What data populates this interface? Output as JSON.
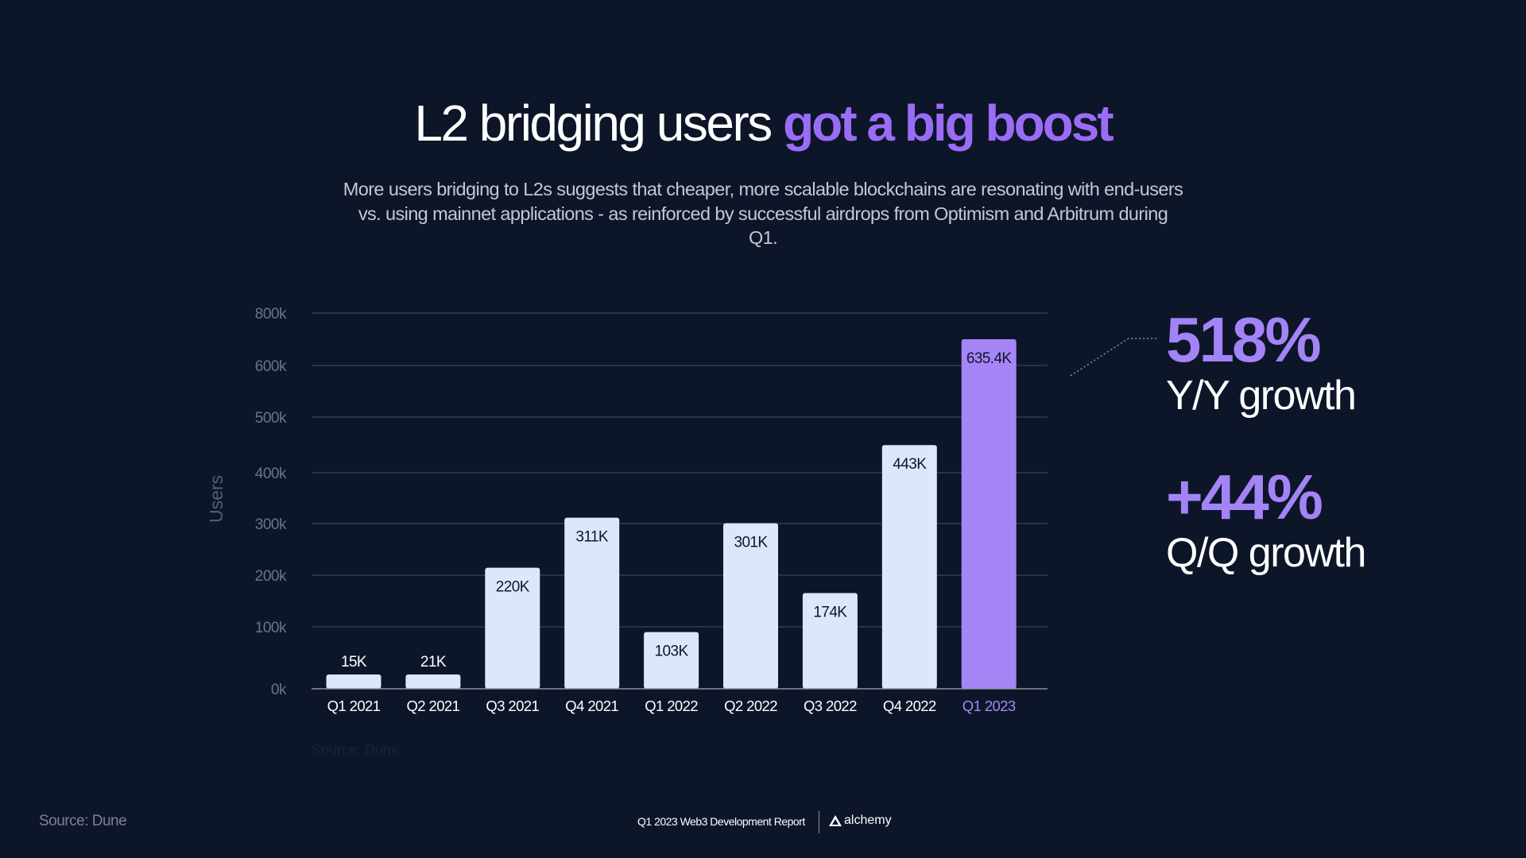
{
  "header": {
    "title_plain": "L2 bridging users",
    "title_highlight": "got a big boost",
    "subtitle": "More users bridging to L2s suggests that cheaper, more scalable blockchains are resonating with end-users vs. using mainnet applications - as reinforced by successful airdrops from Optimism and Arbitrum during Q1."
  },
  "chart_data": {
    "type": "bar",
    "title": "",
    "xlabel": "",
    "ylabel": "Users",
    "categories": [
      "Q1 2021",
      "Q2 2021",
      "Q3 2021",
      "Q4 2021",
      "Q1 2022",
      "Q2 2022",
      "Q3 2022",
      "Q4 2022",
      "Q1 2023"
    ],
    "values": [
      15000,
      21000,
      220000,
      311000,
      103000,
      301000,
      174000,
      443000,
      635400
    ],
    "data_labels": [
      "15K",
      "21K",
      "220K",
      "311K",
      "103K",
      "301K",
      "174K",
      "443K",
      "635.4K"
    ],
    "y_tick_labels": [
      "0k",
      "100k",
      "200k",
      "300k",
      "400k",
      "500k",
      "600k",
      "800k"
    ],
    "grid": true,
    "highlight_category": "Q1 2023",
    "colors": {
      "bar": "#dde6fd",
      "highlight": "#a685f6",
      "highlight_label": "#a685f6",
      "grid": "#3a4356",
      "tick": "#6b7387"
    },
    "source_note": "Source: Dune"
  },
  "stats": [
    {
      "value": "518%",
      "label": "Y/Y growth"
    },
    {
      "value": "+44%",
      "label": "Q/Q growth"
    }
  ],
  "footer": {
    "source": "Source: Dune",
    "report": "Q1 2023 Web3 Development Report",
    "brand": "alchemy"
  },
  "colors": {
    "background": "#0d1628",
    "accent": "#9a6cf6"
  }
}
